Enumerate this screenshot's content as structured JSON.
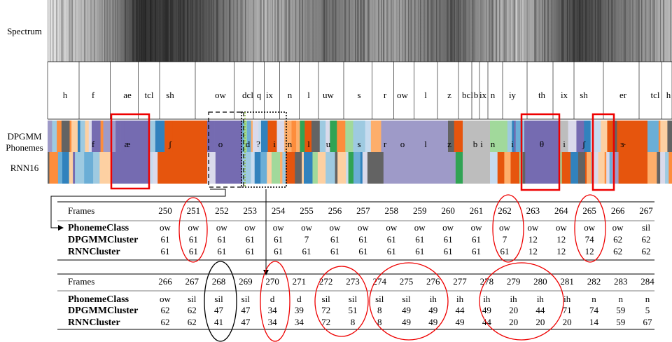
{
  "labels": {
    "spectrum": "Spectrum",
    "phonemes": "Phonemes",
    "dpgmm": "DPGMM",
    "rnn": "RNN16"
  },
  "timit": [
    "h",
    "f",
    "ae",
    "tcl",
    "sh",
    "ow",
    "dcl",
    "q",
    "ix",
    "n",
    "l",
    "uw",
    "s",
    "r",
    "ow",
    "l",
    "z",
    "bcl",
    "b",
    "ix",
    "n",
    "iy",
    "th",
    "ix",
    "sh",
    "er",
    "tcl",
    "h"
  ],
  "ipa": [
    "f",
    "æ",
    "ʃ",
    "o",
    "d",
    "?",
    "i",
    "n",
    "l",
    "u",
    "s",
    "r",
    "o",
    "l",
    "z",
    "b",
    "i",
    "n",
    "i",
    "θ",
    "i",
    "ʃ",
    "ɝ"
  ],
  "tables": [
    {
      "header": "Frames",
      "frames": [
        250,
        251,
        252,
        253,
        254,
        255,
        256,
        257,
        258,
        259,
        260,
        261,
        262,
        263,
        264,
        265,
        266,
        267
      ],
      "rows": [
        {
          "label": "PhonemeClass",
          "cells": [
            "ow",
            "ow",
            "ow",
            "ow",
            "ow",
            "ow",
            "ow",
            "ow",
            "ow",
            "ow",
            "ow",
            "ow",
            "ow",
            "ow",
            "ow",
            "ow",
            "ow",
            "sil"
          ]
        },
        {
          "label": "DPGMMCluster",
          "cells": [
            61,
            61,
            61,
            61,
            61,
            7,
            61,
            61,
            61,
            61,
            61,
            61,
            7,
            12,
            12,
            74,
            62,
            62
          ]
        },
        {
          "label": "RNNCluster",
          "cells": [
            61,
            61,
            61,
            61,
            61,
            61,
            61,
            61,
            61,
            61,
            61,
            61,
            61,
            12,
            12,
            12,
            62,
            62
          ]
        }
      ]
    },
    {
      "header": "Frames",
      "frames": [
        266,
        267,
        268,
        269,
        270,
        271,
        272,
        273,
        274,
        275,
        276,
        277,
        278,
        279,
        280,
        281,
        282,
        283,
        284
      ],
      "rows": [
        {
          "label": "PhonemeClass",
          "cells": [
            "ow",
            "sil",
            "sil",
            "sil",
            "d",
            "d",
            "sil",
            "sil",
            "sil",
            "sil",
            "ih",
            "ih",
            "ih",
            "ih",
            "ih",
            "ih",
            "n",
            "n",
            "n"
          ]
        },
        {
          "label": "DPGMMCluster",
          "cells": [
            62,
            62,
            47,
            47,
            34,
            39,
            72,
            51,
            8,
            49,
            49,
            44,
            49,
            20,
            44,
            71,
            74,
            59,
            5
          ]
        },
        {
          "label": "RNNCluster",
          "cells": [
            62,
            62,
            41,
            47,
            34,
            34,
            72,
            8,
            8,
            49,
            49,
            49,
            44,
            20,
            20,
            20,
            14,
            59,
            67
          ]
        }
      ]
    }
  ]
}
